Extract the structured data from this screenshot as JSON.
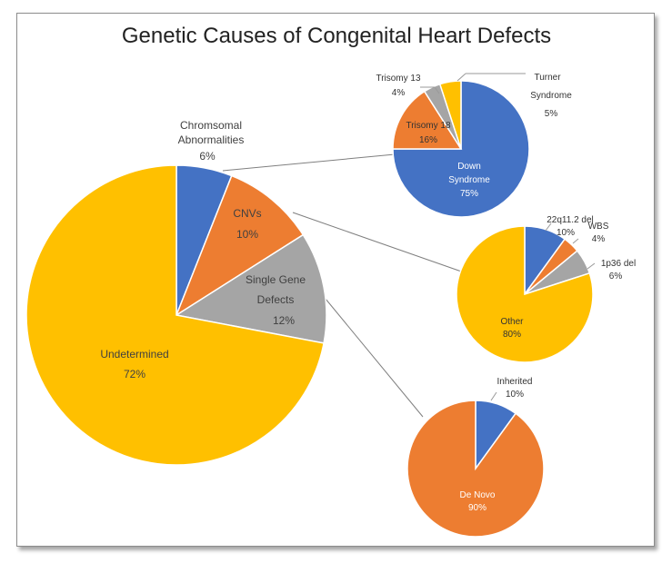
{
  "chart_data": {
    "type": "pie",
    "title": "Genetic Causes of Congenital Heart Defects",
    "colors": {
      "blue": "#4472C4",
      "orange": "#ED7D31",
      "gray": "#A5A5A5",
      "yellow": "#FFC000"
    },
    "main": {
      "slices": [
        {
          "label": "Chromsomal Abnormalities",
          "line1": "Chromsomal",
          "line2": "Abnormalities",
          "pct": "6%",
          "value": 6,
          "color": "#4472C4"
        },
        {
          "label": "CNVs",
          "line1": "CNVs",
          "line2": "",
          "pct": "10%",
          "value": 10,
          "color": "#ED7D31"
        },
        {
          "label": "Single Gene Defects",
          "line1": "Single Gene",
          "line2": "Defects",
          "pct": "12%",
          "value": 12,
          "color": "#A5A5A5"
        },
        {
          "label": "Undetermined",
          "line1": "Undetermined",
          "line2": "",
          "pct": "72%",
          "value": 72,
          "color": "#FFC000"
        }
      ]
    },
    "chromosomal": {
      "slices": [
        {
          "label": "Down Syndrome",
          "line1": "Down",
          "line2": "Syndrome",
          "pct": "75%",
          "value": 75,
          "color": "#4472C4"
        },
        {
          "label": "Trisomy 18",
          "line1": "Trisomy 18",
          "line2": "",
          "pct": "16%",
          "value": 16,
          "color": "#ED7D31"
        },
        {
          "label": "Trisomy 13",
          "line1": "Trisomy 13",
          "line2": "",
          "pct": "4%",
          "value": 4,
          "color": "#A5A5A5"
        },
        {
          "label": "Turner Syndrome",
          "line1": "Turner",
          "line2": "Syndrome",
          "pct": "5%",
          "value": 5,
          "color": "#FFC000"
        }
      ]
    },
    "cnvs": {
      "slices": [
        {
          "label": "22q11.2 del",
          "line1": "22q11.2 del",
          "line2": "",
          "pct": "10%",
          "value": 10,
          "color": "#4472C4"
        },
        {
          "label": "WBS",
          "line1": "WBS",
          "line2": "",
          "pct": "4%",
          "value": 4,
          "color": "#ED7D31"
        },
        {
          "label": "1p36 del",
          "line1": "1p36 del",
          "line2": "",
          "pct": "6%",
          "value": 6,
          "color": "#A5A5A5"
        },
        {
          "label": "Other",
          "line1": "Other",
          "line2": "",
          "pct": "80%",
          "value": 80,
          "color": "#FFC000"
        }
      ]
    },
    "single_gene": {
      "slices": [
        {
          "label": "Inherited",
          "line1": "Inherited",
          "line2": "",
          "pct": "10%",
          "value": 10,
          "color": "#4472C4"
        },
        {
          "label": "De Novo",
          "line1": "De Novo",
          "line2": "",
          "pct": "90%",
          "value": 90,
          "color": "#ED7D31"
        }
      ]
    }
  }
}
